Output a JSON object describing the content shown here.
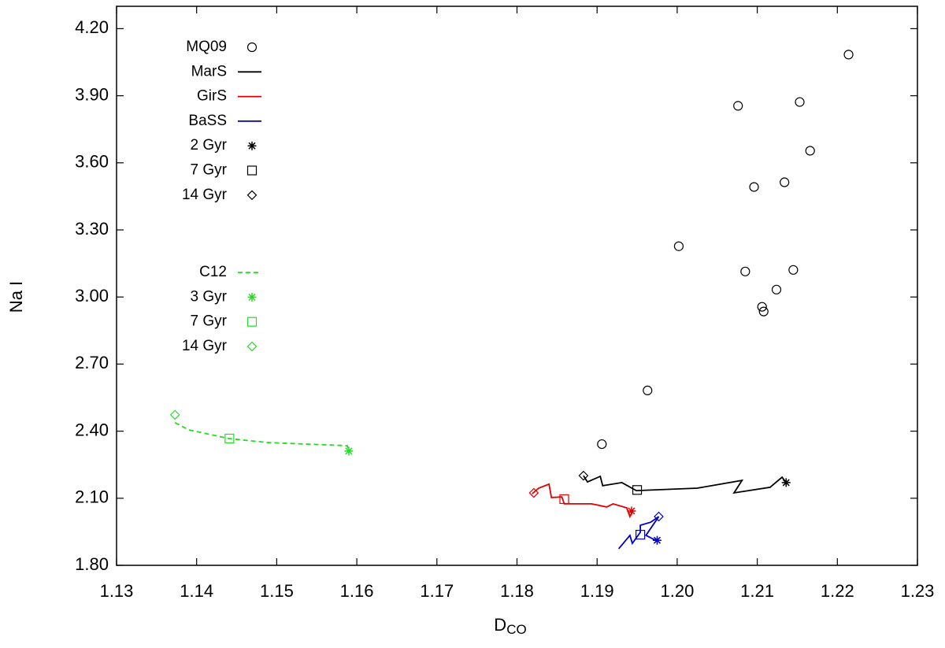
{
  "chart_data": {
    "type": "scatter",
    "xlabel": "D",
    "xlabel_sub": "CO",
    "ylabel": "Na I",
    "xlim": [
      1.13,
      1.23
    ],
    "ylim": [
      1.8,
      4.3
    ],
    "xticks": [
      1.13,
      1.14,
      1.15,
      1.16,
      1.17,
      1.18,
      1.19,
      {
        "value": 1.2,
        "label": "1.20"
      },
      1.21,
      1.22,
      1.23
    ],
    "yticks": [
      {
        "value": 1.8,
        "label": "1.80"
      },
      {
        "value": 2.1,
        "label": "2.10"
      },
      {
        "value": 2.4,
        "label": "2.40"
      },
      {
        "value": 2.7,
        "label": "2.70"
      },
      {
        "value": 3.0,
        "label": "3.00"
      },
      {
        "value": 3.3,
        "label": "3.30"
      },
      {
        "value": 3.6,
        "label": "3.60"
      },
      {
        "value": 3.9,
        "label": "3.90"
      },
      {
        "value": 4.2,
        "label": "4.20"
      }
    ],
    "series": [
      {
        "name": "MQ09",
        "marker": "circle",
        "color": "#000000",
        "x": [
          1.2214,
          1.2076,
          1.2153,
          1.2166,
          1.2096,
          1.2134,
          1.2002,
          1.2085,
          1.2145,
          1.2124,
          1.2106,
          1.2108,
          1.1963,
          1.1906
        ],
        "values": [
          4.084,
          3.855,
          3.872,
          3.654,
          3.492,
          3.513,
          3.227,
          3.114,
          3.121,
          3.033,
          2.956,
          2.935,
          2.582,
          2.342
        ]
      },
      {
        "name": "MarS",
        "marker": "line",
        "color": "#000000",
        "x": [
          1.1883,
          1.1888,
          1.1904,
          1.1907,
          1.1931,
          1.1949,
          1.2025,
          1.2081,
          1.2071,
          1.2116,
          1.2131,
          1.2136
        ],
        "values": [
          2.201,
          2.173,
          2.198,
          2.156,
          2.17,
          2.134,
          2.145,
          2.18,
          2.124,
          2.149,
          2.194,
          2.17
        ]
      },
      {
        "name": "GirS",
        "marker": "line",
        "color": "#e00000",
        "x": [
          1.1819,
          1.1827,
          1.184,
          1.1843,
          1.1856,
          1.1859,
          1.1893,
          1.1912,
          1.192,
          1.1937,
          1.1941,
          1.1945,
          1.1943
        ],
        "values": [
          2.12,
          2.145,
          2.163,
          2.103,
          2.106,
          2.075,
          2.075,
          2.061,
          2.075,
          2.057,
          2.018,
          2.046,
          2.039
        ]
      },
      {
        "name": "BaSS",
        "marker": "line",
        "color": "#0000c0",
        "x": [
          1.1927,
          1.1941,
          1.1944,
          1.1954,
          1.1954,
          1.1967,
          1.1977,
          1.1961,
          1.1973
        ],
        "values": [
          1.874,
          1.934,
          1.898,
          1.948,
          1.979,
          1.993,
          2.018,
          1.934,
          1.912
        ]
      },
      {
        "name": "2 Gyr",
        "marker": "star",
        "color": "#000000",
        "colors": [
          "#000000",
          "#e00000",
          "#0000c0"
        ],
        "x": [
          1.2136,
          1.1943,
          1.1975
        ],
        "values": [
          2.17,
          2.043,
          1.912
        ]
      },
      {
        "name": "7 Gyr",
        "marker": "square",
        "color": "#000000",
        "colors": [
          "#000000",
          "#e00000",
          "#0000c0"
        ],
        "x": [
          1.195,
          1.1859,
          1.1954
        ],
        "values": [
          2.137,
          2.096,
          1.937
        ]
      },
      {
        "name": "14 Gyr",
        "marker": "diamond",
        "color": "#000000",
        "colors": [
          "#000000",
          "#e00000",
          "#0000c0"
        ],
        "x": [
          1.1883,
          1.1821,
          1.1977
        ],
        "values": [
          2.201,
          2.124,
          2.018
        ]
      },
      {
        "name": "C12",
        "marker": "dashed",
        "color": "#22dd22",
        "x": [
          1.1373,
          1.139,
          1.144,
          1.1489,
          1.1588,
          1.159
        ],
        "values": [
          2.438,
          2.406,
          2.367,
          2.349,
          2.335,
          2.311
        ]
      },
      {
        "name": "3 Gyr",
        "marker": "star",
        "color": "#22dd22",
        "x": [
          1.159
        ],
        "values": [
          2.311
        ]
      },
      {
        "name": "7 Gyr",
        "marker": "square",
        "color": "#22dd22",
        "x": [
          1.1441
        ],
        "values": [
          2.367
        ]
      },
      {
        "name": "14 Gyr",
        "marker": "diamond",
        "color": "#22dd22",
        "x": [
          1.1373
        ],
        "values": [
          2.473
        ]
      }
    ]
  }
}
